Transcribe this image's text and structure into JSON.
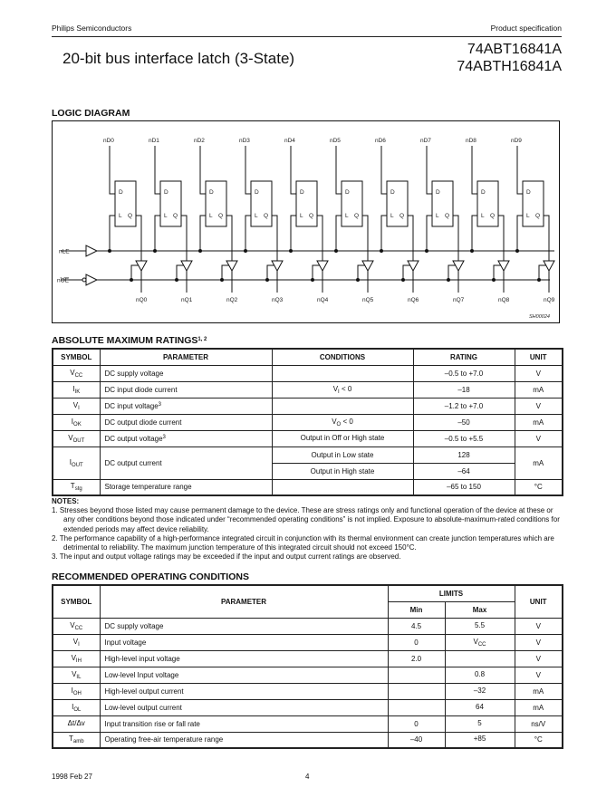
{
  "header": {
    "company": "Philips Semiconductors",
    "doc_type": "Product specification",
    "title": "20-bit bus interface latch (3-State)",
    "part_numbers": [
      "74ABT16841A",
      "74ABTH16841A"
    ]
  },
  "logic_diagram": {
    "heading": "LOGIC DIAGRAM",
    "inputs": [
      "nD0",
      "nD1",
      "nD2",
      "nD3",
      "nD4",
      "nD5",
      "nD6",
      "nD7",
      "nD8",
      "nD9"
    ],
    "outputs": [
      "nQ0",
      "nQ1",
      "nQ2",
      "nQ3",
      "nQ4",
      "nQ5",
      "nQ6",
      "nQ7",
      "nQ8",
      "nQ9"
    ],
    "latch_pins": {
      "d": "D",
      "l": "L",
      "q": "Q"
    },
    "le_label": "nLE",
    "oe_label_prefix": "n",
    "oe_label_bar": "OE",
    "figure_code": "SH00024"
  },
  "abs_max": {
    "heading": "ABSOLUTE MAXIMUM RATINGS",
    "heading_sup": "1, 2",
    "columns": [
      "SYMBOL",
      "PARAMETER",
      "CONDITIONS",
      "RATING",
      "UNIT"
    ],
    "rows": [
      {
        "sym": "V",
        "sub": "CC",
        "param": "DC supply voltage",
        "psup": "",
        "cond": "",
        "cond_sub": "",
        "cond_rest": "",
        "rating": "–0.5 to +7.0",
        "unit": "V"
      },
      {
        "sym": "I",
        "sub": "IK",
        "param": "DC input diode current",
        "psup": "",
        "cond": "V",
        "cond_sub": "I",
        "cond_rest": " < 0",
        "rating": "–18",
        "unit": "mA"
      },
      {
        "sym": "V",
        "sub": "I",
        "param": "DC input voltage",
        "psup": "3",
        "cond": "",
        "cond_sub": "",
        "cond_rest": "",
        "rating": "–1.2 to +7.0",
        "unit": "V"
      },
      {
        "sym": "I",
        "sub": "OK",
        "param": "DC output diode current",
        "psup": "",
        "cond": "V",
        "cond_sub": "O",
        "cond_rest": " < 0",
        "rating": "–50",
        "unit": "mA"
      },
      {
        "sym": "V",
        "sub": "OUT",
        "param": "DC output voltage",
        "psup": "3",
        "cond": "Output in Off or High state",
        "cond_sub": "",
        "cond_rest": "",
        "rating": "–0.5 to +5.5",
        "unit": "V"
      }
    ],
    "iout": {
      "sym": "I",
      "sub": "OUT",
      "param": "DC output current",
      "cond_low": "Output in Low state",
      "rating_low": "128",
      "cond_high": "Output in High state",
      "rating_high": "–64",
      "unit": "mA"
    },
    "tstg": {
      "sym": "T",
      "sub": "stg",
      "param": "Storage temperature range",
      "rating": "–65 to 150",
      "unit": "°C"
    }
  },
  "notes": {
    "heading": "NOTES:",
    "items": [
      "1.  Stresses beyond those listed may cause permanent damage to the device. These are stress ratings only and functional operation of the device at these or any other conditions beyond those indicated under “recommended operating conditions” is not implied. Exposure to absolute-maximum-rated conditions for extended periods may affect device reliability.",
      "2.  The performance capability of a high-performance integrated circuit in conjunction with its thermal environment can create junction temperatures which are detrimental to reliability. The maximum junction temperature of this integrated circuit should not exceed 150°C.",
      "3.  The input and output voltage ratings may be exceeded if the input and output current ratings are observed."
    ]
  },
  "rec_op": {
    "heading": "RECOMMENDED OPERATING CONDITIONS",
    "columns": {
      "symbol": "SYMBOL",
      "parameter": "PARAMETER",
      "limits": "LIMITS",
      "min": "Min",
      "max": "Max",
      "unit": "UNIT"
    },
    "rows": [
      {
        "sym": "V",
        "sub": "CC",
        "param": "DC supply voltage",
        "min": "4.5",
        "max": "5.5",
        "max_sub": "",
        "unit": "V"
      },
      {
        "sym": "V",
        "sub": "I",
        "param": "Input voltage",
        "min": "0",
        "max": "V",
        "max_sub": "CC",
        "unit": "V"
      },
      {
        "sym": "V",
        "sub": "IH",
        "param": "High-level input voltage",
        "min": "2.0",
        "max": "",
        "max_sub": "",
        "unit": "V"
      },
      {
        "sym": "V",
        "sub": "IL",
        "param": "Low-level Input voltage",
        "min": "",
        "max": "0.8",
        "max_sub": "",
        "unit": "V"
      },
      {
        "sym": "I",
        "sub": "OH",
        "param": "High-level output current",
        "min": "",
        "max": "–32",
        "max_sub": "",
        "unit": "mA"
      },
      {
        "sym": "I",
        "sub": "OL",
        "param": "Low-level output current",
        "min": "",
        "max": "64",
        "max_sub": "",
        "unit": "mA"
      },
      {
        "sym": "Δt/Δv",
        "sub": "",
        "param": "Input transition rise or fall rate",
        "min": "0",
        "max": "5",
        "max_sub": "",
        "unit": "ns/V"
      },
      {
        "sym": "T",
        "sub": "amb",
        "param": "Operating free-air temperature range",
        "min": "–40",
        "max": "+85",
        "max_sub": "",
        "unit": "°C"
      }
    ]
  },
  "footer": {
    "date": "1998 Feb 27",
    "page": "4"
  }
}
